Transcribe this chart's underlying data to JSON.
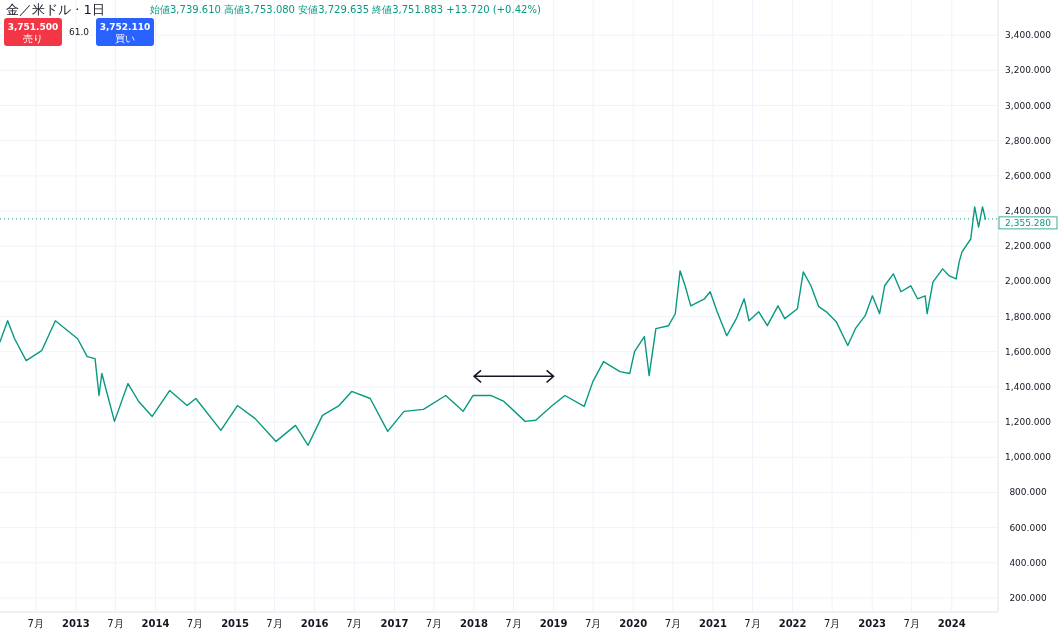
{
  "chart_data": {
    "type": "line",
    "title": "金／米ドル · 1日",
    "subtitle": "始値3,739.610 高値3,753.080 安値3,729.635 終値3,751.883 +13.720 (+0.42%)",
    "annotations": [
      "3,751.500",
      "売り",
      "61.0",
      "3,752.110",
      "買い"
    ],
    "x": [
      "2012-01-19",
      "2012-02-23",
      "2012-03-26",
      "2012-05-18",
      "2012-07-28",
      "2012-09-29",
      "2013-01-09",
      "2013-02-22",
      "2013-03-30",
      "2013-04-17",
      "2013-04-30",
      "2013-06-27",
      "2013-08-28",
      "2013-10-16",
      "2013-12-17",
      "2014-03-07",
      "2014-05-26",
      "2014-07-05",
      "2014-10-28",
      "2015-01-12",
      "2015-04-02",
      "2015-07-08",
      "2015-10-05",
      "2015-12-02",
      "2016-02-06",
      "2016-04-22",
      "2016-06-19",
      "2016-09-12",
      "2016-12-01",
      "2017-02-14",
      "2017-05-14",
      "2017-08-24",
      "2017-11-12",
      "2017-12-27",
      "2018-03-21",
      "2018-05-18",
      "2018-08-23",
      "2018-10-11",
      "2018-12-26",
      "2019-02-22",
      "2019-05-21",
      "2019-06-30",
      "2019-08-18",
      "2019-11-01",
      "2019-12-16",
      "2020-01-07",
      "2020-02-21",
      "2020-03-14",
      "2020-04-14",
      "2020-06-11",
      "2020-07-12",
      "2020-08-03",
      "2020-08-26",
      "2020-09-21",
      "2020-11-23",
      "2020-12-19",
      "2021-01-20",
      "2021-03-05",
      "2021-04-18",
      "2021-05-24",
      "2021-06-15",
      "2021-07-30",
      "2021-09-07",
      "2021-10-26",
      "2021-11-26",
      "2022-01-23",
      "2022-02-19",
      "2022-03-26",
      "2022-05-01",
      "2022-06-05",
      "2022-07-20",
      "2022-09-11",
      "2022-10-16",
      "2022-11-30",
      "2023-01-02",
      "2023-02-04",
      "2023-02-27",
      "2023-04-08",
      "2023-05-13",
      "2023-06-27",
      "2023-07-28",
      "2023-09-01",
      "2023-09-10",
      "2023-10-07",
      "2023-11-20",
      "2023-12-21",
      "2024-01-21",
      "2024-02-04",
      "2024-02-17",
      "2024-03-28",
      "2024-04-15",
      "2024-05-03",
      "2024-05-21",
      "2024-06-03"
    ],
    "series": [
      {
        "color": "#089981",
        "values": [
          1657,
          1776,
          1674,
          1549,
          1606,
          1776,
          1674,
          1572,
          1561,
          1351,
          1476,
          1204,
          1419,
          1317,
          1232,
          1379,
          1294,
          1334,
          1153,
          1294,
          1221,
          1090,
          1181,
          1068,
          1238,
          1294,
          1374,
          1334,
          1147,
          1261,
          1272,
          1351,
          1261,
          1351,
          1351,
          1317,
          1204,
          1210,
          1294,
          1351,
          1289,
          1430,
          1544,
          1487,
          1476,
          1600,
          1686,
          1464,
          1731,
          1748,
          1816,
          2060,
          1975,
          1861,
          1901,
          1941,
          1827,
          1691,
          1788,
          1901,
          1776,
          1827,
          1748,
          1861,
          1788,
          1844,
          2054,
          1975,
          1856,
          1827,
          1771,
          1635,
          1731,
          1805,
          1918,
          1816,
          1975,
          2043,
          1941,
          1975,
          1901,
          1918,
          1816,
          1997,
          2071,
          2031,
          2014,
          2111,
          2168,
          2241,
          2423,
          2309,
          2423,
          2355
        ]
      }
    ],
    "xlim": [
      "2012-01-19",
      "2024-07-31"
    ],
    "xticks": [
      {
        "value": "2012-07-01",
        "label": "7月"
      },
      {
        "value": "2013-01-01",
        "label": "2013"
      },
      {
        "value": "2013-07-01",
        "label": "7月"
      },
      {
        "value": "2014-01-01",
        "label": "2014"
      },
      {
        "value": "2014-07-01",
        "label": "7月"
      },
      {
        "value": "2015-01-01",
        "label": "2015"
      },
      {
        "value": "2015-07-01",
        "label": "7月"
      },
      {
        "value": "2016-01-01",
        "label": "2016"
      },
      {
        "value": "2016-07-01",
        "label": "7月"
      },
      {
        "value": "2017-01-01",
        "label": "2017"
      },
      {
        "value": "2017-07-01",
        "label": "7月"
      },
      {
        "value": "2018-01-01",
        "label": "2018"
      },
      {
        "value": "2018-07-01",
        "label": "7月"
      },
      {
        "value": "2019-01-01",
        "label": "2019"
      },
      {
        "value": "2019-07-01",
        "label": "7月"
      },
      {
        "value": "2020-01-01",
        "label": "2020"
      },
      {
        "value": "2020-07-01",
        "label": "7月"
      },
      {
        "value": "2021-01-01",
        "label": "2021"
      },
      {
        "value": "2021-07-01",
        "label": "7月"
      },
      {
        "value": "2022-01-01",
        "label": "2022"
      },
      {
        "value": "2022-07-01",
        "label": "7月"
      },
      {
        "value": "2023-01-01",
        "label": "2023"
      },
      {
        "value": "2023-07-01",
        "label": "7月"
      },
      {
        "value": "2024-01-01",
        "label": "2024"
      }
    ],
    "ylim": [
      120,
      3600
    ],
    "yticks": [
      {
        "value": 200,
        "label": "200.000"
      },
      {
        "value": 400,
        "label": "400.000"
      },
      {
        "value": 600,
        "label": "600.000"
      },
      {
        "value": 800,
        "label": "800.000"
      },
      {
        "value": 1000,
        "label": "1,000.000"
      },
      {
        "value": 1200,
        "label": "1,200.000"
      },
      {
        "value": 1400,
        "label": "1,400.000"
      },
      {
        "value": 1600,
        "label": "1,600.000"
      },
      {
        "value": 1800,
        "label": "1,800.000"
      },
      {
        "value": 2000,
        "label": "2,000.000"
      },
      {
        "value": 2200,
        "label": "2,200.000"
      },
      {
        "value": 2400,
        "label": "2,400.000"
      },
      {
        "value": 2600,
        "label": "2,600.000"
      },
      {
        "value": 2800,
        "label": "2,800.000"
      },
      {
        "value": 3000,
        "label": "3,000.000"
      },
      {
        "value": 3200,
        "label": "3,200.000"
      },
      {
        "value": 3400,
        "label": "3,400.000"
      }
    ],
    "ref_lines": [
      {
        "axis": "y",
        "value": 2355.28,
        "label": "2,355.280",
        "color": "#089981",
        "line_style": "dotted"
      }
    ],
    "grid": true,
    "marker": "none",
    "line_style": "solid"
  }
}
